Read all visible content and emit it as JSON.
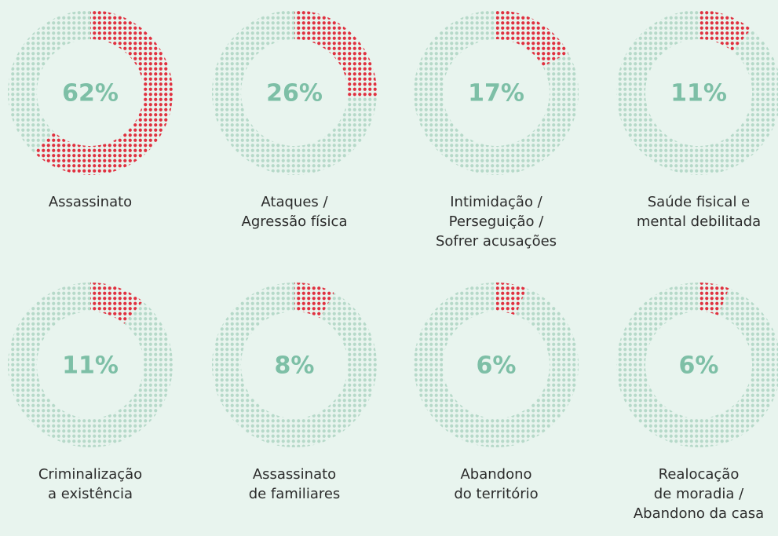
{
  "chart_data": [
    {
      "type": "donut",
      "title": "Assassinato",
      "values": [
        62,
        38
      ],
      "value_labels": [
        "62%",
        null
      ],
      "colors": [
        "#e0303f",
        "#b6d9c9"
      ]
    },
    {
      "type": "donut",
      "title": "Ataques /\nAgressão física",
      "values": [
        26,
        74
      ],
      "value_labels": [
        "26%",
        null
      ],
      "colors": [
        "#e0303f",
        "#b6d9c9"
      ]
    },
    {
      "type": "donut",
      "title": "Intimidação /\nPerseguição /\nSofrer acusações",
      "values": [
        17,
        83
      ],
      "value_labels": [
        "17%",
        null
      ],
      "colors": [
        "#e0303f",
        "#b6d9c9"
      ]
    },
    {
      "type": "donut",
      "title": "Saúde fisical e\nmental debilitada",
      "values": [
        11,
        89
      ],
      "value_labels": [
        "11%",
        null
      ],
      "colors": [
        "#e0303f",
        "#b6d9c9"
      ]
    },
    {
      "type": "donut",
      "title": "Criminalização\na existência",
      "values": [
        11,
        89
      ],
      "value_labels": [
        "11%",
        null
      ],
      "colors": [
        "#e0303f",
        "#b6d9c9"
      ]
    },
    {
      "type": "donut",
      "title": "Assassinato\nde familiares",
      "values": [
        8,
        92
      ],
      "value_labels": [
        "8%",
        null
      ],
      "colors": [
        "#e0303f",
        "#b6d9c9"
      ]
    },
    {
      "type": "donut",
      "title": "Abandono\ndo território",
      "values": [
        6,
        94
      ],
      "value_labels": [
        "6%",
        null
      ],
      "colors": [
        "#e0303f",
        "#b6d9c9"
      ]
    },
    {
      "type": "donut",
      "title": "Realocação\nde moradia /\nAbandono da casa",
      "values": [
        6,
        94
      ],
      "value_labels": [
        "6%",
        null
      ],
      "colors": [
        "#e0303f",
        "#b6d9c9"
      ]
    }
  ]
}
